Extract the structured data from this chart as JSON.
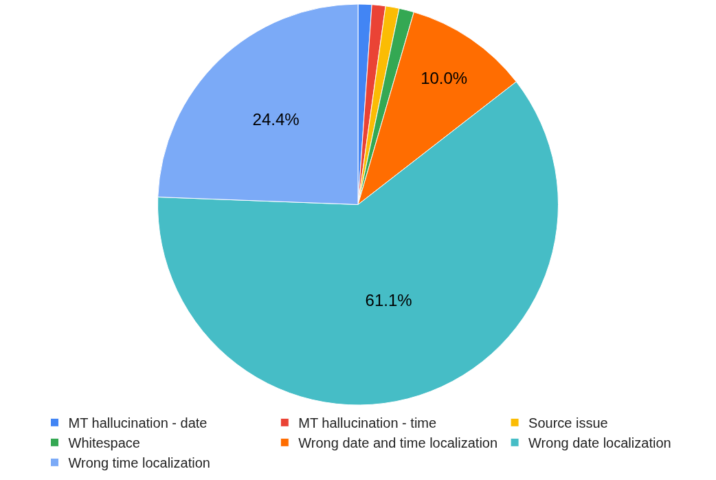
{
  "chart_data": {
    "type": "pie",
    "categories": [
      "MT hallucination - date",
      "MT hallucination - time",
      "Source issue",
      "Whitespace",
      "Wrong date and time localization",
      "Wrong date localization",
      "Wrong time localization"
    ],
    "values": [
      1.1,
      1.1,
      1.1,
      1.2,
      10.0,
      61.1,
      24.4
    ],
    "value_labels": [
      null,
      null,
      null,
      null,
      "10.0%",
      "61.1%",
      "24.4%"
    ],
    "colors": [
      "#4285f4",
      "#ea4335",
      "#fbbc04",
      "#34a853",
      "#ff6d01",
      "#46bdc6",
      "#7baaf7"
    ],
    "legend": "bottom"
  }
}
